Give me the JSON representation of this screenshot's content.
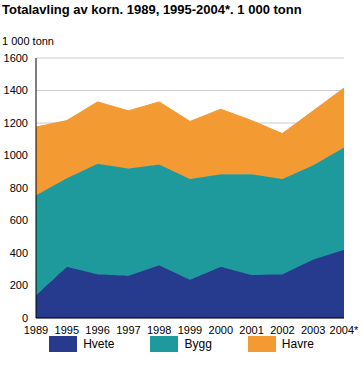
{
  "chart_data": {
    "type": "area",
    "title": "Totalavling av korn. 1989, 1995-2004*. 1 000 tonn",
    "y_label": "1 000 tonn",
    "categories": [
      "1989",
      "1995",
      "1996",
      "1997",
      "1998",
      "1999",
      "2000",
      "2001",
      "2002",
      "2003",
      "2004*"
    ],
    "series": [
      {
        "name": "Hvete",
        "color": "#263a8e",
        "values": [
          140,
          315,
          270,
          260,
          325,
          235,
          315,
          265,
          270,
          360,
          420
        ]
      },
      {
        "name": "Bygg",
        "color": "#1e9a9c",
        "values": [
          615,
          545,
          680,
          660,
          620,
          620,
          570,
          620,
          585,
          580,
          630
        ]
      },
      {
        "name": "Havre",
        "color": "#f39a32",
        "values": [
          420,
          355,
          380,
          355,
          385,
          355,
          400,
          330,
          280,
          335,
          365
        ]
      }
    ],
    "ylim": [
      0,
      1600
    ],
    "yticks": [
      0,
      200,
      400,
      600,
      800,
      1000,
      1200,
      1400,
      1600
    ],
    "grid": true,
    "stacked": true,
    "legend": "bottom"
  }
}
